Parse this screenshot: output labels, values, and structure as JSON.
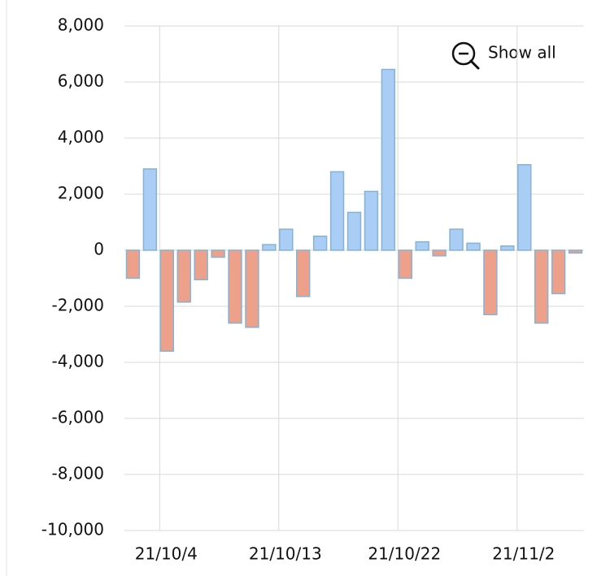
{
  "button": "Show all",
  "chart_data": {
    "type": "bar",
    "categories": [
      null,
      null,
      "21/10/4",
      null,
      null,
      null,
      null,
      null,
      null,
      "21/10/13",
      null,
      null,
      null,
      null,
      null,
      null,
      "21/10/22",
      null,
      null,
      null,
      null,
      null,
      null,
      "21/11/2",
      null,
      null,
      null
    ],
    "values": [
      -1000,
      2900,
      -3600,
      -1850,
      -1050,
      -250,
      -2600,
      -2750,
      200,
      750,
      -1650,
      500,
      2800,
      1350,
      2100,
      6450,
      -1000,
      300,
      -200,
      750,
      250,
      -2300,
      150,
      3050,
      -2600,
      -1550,
      -100
    ],
    "positive_color": "#a9cdf5",
    "negative_color": "#eea18a",
    "edge_color": "#86b2d3",
    "ylim": [
      -10000,
      8000
    ],
    "yticks": [
      {
        "value": -10000,
        "label": "-10,000"
      },
      {
        "value": -8000,
        "label": "-8,000"
      },
      {
        "value": -6000,
        "label": "-6,000"
      },
      {
        "value": -4000,
        "label": "-4,000"
      },
      {
        "value": -2000,
        "label": "-2,000"
      },
      0,
      {
        "value": 2000,
        "label": "2,000"
      },
      {
        "value": 4000,
        "label": "4,000"
      },
      {
        "value": 6000,
        "label": "6,000"
      },
      {
        "value": 8000,
        "label": "8,000"
      }
    ],
    "grid": true
  }
}
